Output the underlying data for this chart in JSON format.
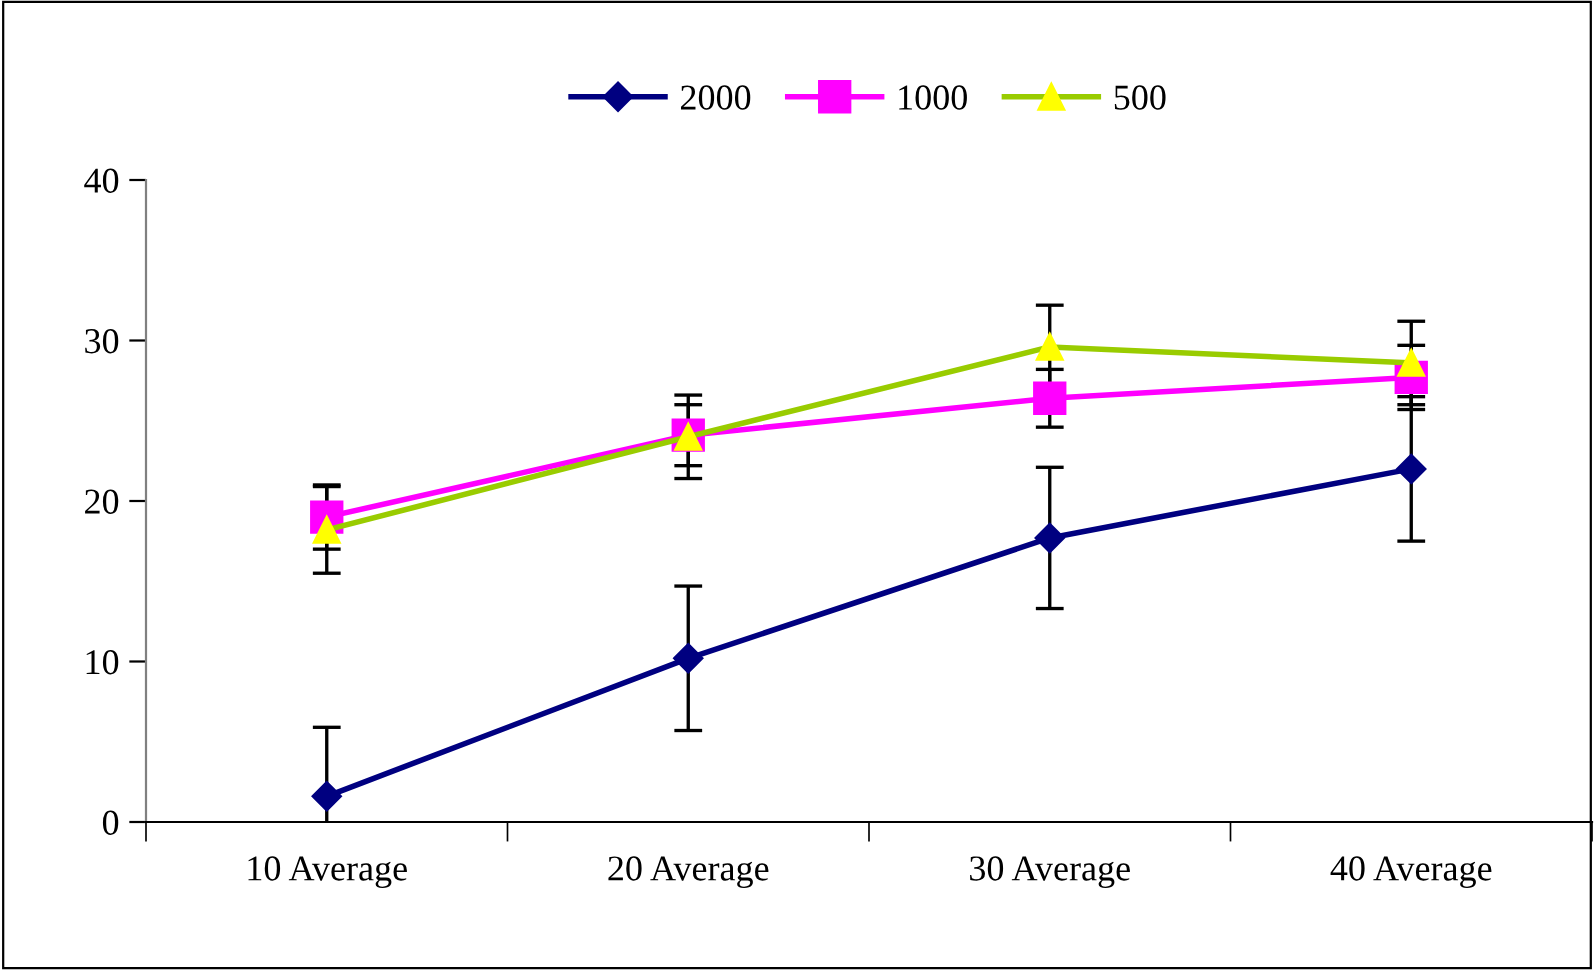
{
  "chart_data": {
    "type": "line",
    "categories": [
      "10 Average",
      "20 Average",
      "30 Average",
      "40 Average"
    ],
    "series": [
      {
        "name": "2000",
        "color": "#000080",
        "marker": "diamond",
        "values": [
          1.6,
          10.2,
          17.7,
          22.0
        ],
        "errors": [
          4.3,
          4.5,
          4.4,
          4.5
        ]
      },
      {
        "name": "1000",
        "color": "#ff00ff",
        "marker": "square",
        "values": [
          19.0,
          24.1,
          26.4,
          27.7
        ],
        "errors": [
          2.0,
          1.9,
          1.8,
          2.0
        ]
      },
      {
        "name": "500",
        "color": "#99cc00",
        "marker": "triangle",
        "values": [
          18.2,
          24.0,
          29.6,
          28.6
        ],
        "errors": [
          2.7,
          2.6,
          2.6,
          2.6
        ]
      }
    ],
    "ylim": [
      0,
      40
    ],
    "yticks": [
      0,
      10,
      20,
      30,
      40
    ],
    "grid": false,
    "legend": "top",
    "line_style": "solid"
  }
}
